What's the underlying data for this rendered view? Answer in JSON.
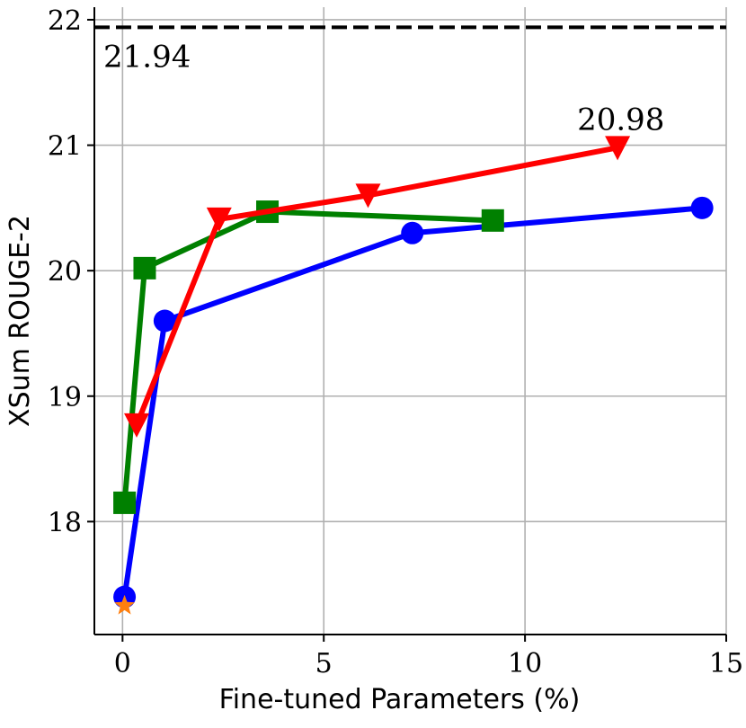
{
  "chart_data": {
    "type": "line",
    "xlabel": "Fine-tuned Parameters (%)",
    "ylabel": "XSum ROUGE-2",
    "xlim": [
      -0.7,
      15
    ],
    "ylim": [
      17.1,
      22.1
    ],
    "xticks": [
      0,
      5,
      10,
      15
    ],
    "yticks": [
      18,
      19,
      20,
      21,
      22
    ],
    "grid": true,
    "legend": "none",
    "reference_line": {
      "y": 21.94,
      "label": "21.94",
      "style": "dashed",
      "color": "#000000"
    },
    "series": [
      {
        "color": "#0000ff",
        "marker": "circle",
        "x": [
          0.05,
          1.05,
          7.2,
          14.4
        ],
        "y": [
          17.4,
          19.6,
          20.3,
          20.5
        ]
      },
      {
        "color": "#008000",
        "marker": "square",
        "x": [
          0.05,
          0.55,
          3.6,
          9.2
        ],
        "y": [
          18.15,
          20.02,
          20.47,
          20.4
        ]
      },
      {
        "color": "#ff0000",
        "marker": "triangle-down",
        "x": [
          0.35,
          2.4,
          6.1,
          12.3
        ],
        "y": [
          18.77,
          20.41,
          20.6,
          20.98
        ],
        "end_label": "20.98"
      },
      {
        "color": "#ff7f0e",
        "marker": "star",
        "x": [
          0.05
        ],
        "y": [
          17.33
        ]
      }
    ]
  }
}
